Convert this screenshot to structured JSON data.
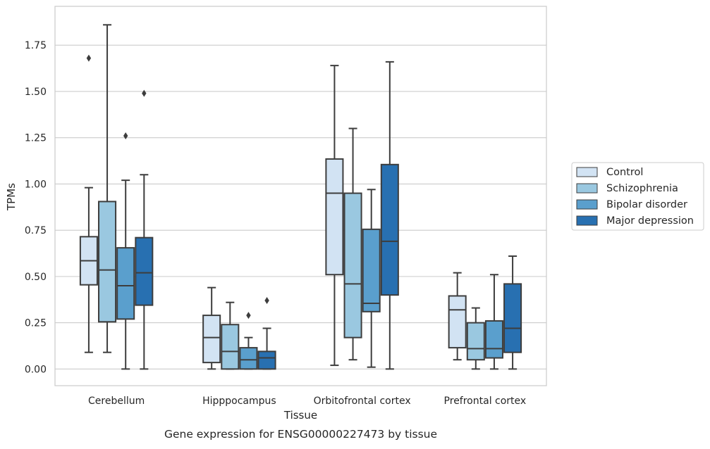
{
  "chart_data": {
    "type": "box",
    "xlabel": "Tissue",
    "ylabel": "TPMs",
    "caption": "Gene expression for ENSG00000227473 by tissue",
    "ylim": [
      -0.09,
      1.96
    ],
    "yticks": [
      0.0,
      0.25,
      0.5,
      0.75,
      1.0,
      1.25,
      1.5,
      1.75
    ],
    "ytick_labels": [
      "0.00",
      "0.25",
      "0.50",
      "0.75",
      "1.00",
      "1.25",
      "1.50",
      "1.75"
    ],
    "grid": "horizontal",
    "legend_position": "right",
    "categories": [
      "Cerebellum",
      "Hipppocampus",
      "Orbitofrontal cortex",
      "Prefrontal cortex"
    ],
    "series": [
      {
        "name": "Control",
        "color": "#d2e3f3",
        "boxes": [
          {
            "whislo": 0.09,
            "q1": 0.455,
            "med": 0.585,
            "q3": 0.715,
            "whishi": 0.98,
            "fliers": [
              1.68
            ]
          },
          {
            "whislo": 0.0,
            "q1": 0.035,
            "med": 0.17,
            "q3": 0.29,
            "whishi": 0.44,
            "fliers": []
          },
          {
            "whislo": 0.02,
            "q1": 0.51,
            "med": 0.95,
            "q3": 1.135,
            "whishi": 1.64,
            "fliers": []
          },
          {
            "whislo": 0.05,
            "q1": 0.115,
            "med": 0.32,
            "q3": 0.395,
            "whishi": 0.52,
            "fliers": []
          }
        ]
      },
      {
        "name": "Schizophrenia",
        "color": "#9ac8e0",
        "boxes": [
          {
            "whislo": 0.09,
            "q1": 0.255,
            "med": 0.535,
            "q3": 0.905,
            "whishi": 1.86,
            "fliers": []
          },
          {
            "whislo": 0.0,
            "q1": 0.0,
            "med": 0.095,
            "q3": 0.24,
            "whishi": 0.36,
            "fliers": []
          },
          {
            "whislo": 0.05,
            "q1": 0.17,
            "med": 0.46,
            "q3": 0.95,
            "whishi": 1.3,
            "fliers": []
          },
          {
            "whislo": 0.0,
            "q1": 0.05,
            "med": 0.11,
            "q3": 0.25,
            "whishi": 0.33,
            "fliers": []
          }
        ]
      },
      {
        "name": "Bipolar disorder",
        "color": "#5a9fcd",
        "boxes": [
          {
            "whislo": 0.0,
            "q1": 0.27,
            "med": 0.45,
            "q3": 0.655,
            "whishi": 1.02,
            "fliers": [
              1.26
            ]
          },
          {
            "whislo": 0.0,
            "q1": 0.0,
            "med": 0.05,
            "q3": 0.115,
            "whishi": 0.17,
            "fliers": [
              0.29
            ]
          },
          {
            "whislo": 0.01,
            "q1": 0.31,
            "med": 0.355,
            "q3": 0.755,
            "whishi": 0.97,
            "fliers": []
          },
          {
            "whislo": 0.0,
            "q1": 0.06,
            "med": 0.11,
            "q3": 0.26,
            "whishi": 0.51,
            "fliers": []
          }
        ]
      },
      {
        "name": "Major depression",
        "color": "#2870b1",
        "boxes": [
          {
            "whislo": 0.0,
            "q1": 0.345,
            "med": 0.52,
            "q3": 0.71,
            "whishi": 1.05,
            "fliers": [
              1.49
            ]
          },
          {
            "whislo": 0.0,
            "q1": 0.0,
            "med": 0.06,
            "q3": 0.095,
            "whishi": 0.22,
            "fliers": [
              0.37
            ]
          },
          {
            "whislo": 0.0,
            "q1": 0.4,
            "med": 0.69,
            "q3": 1.105,
            "whishi": 1.66,
            "fliers": []
          },
          {
            "whislo": 0.0,
            "q1": 0.09,
            "med": 0.22,
            "q3": 0.46,
            "whishi": 0.61,
            "fliers": []
          }
        ]
      }
    ]
  }
}
